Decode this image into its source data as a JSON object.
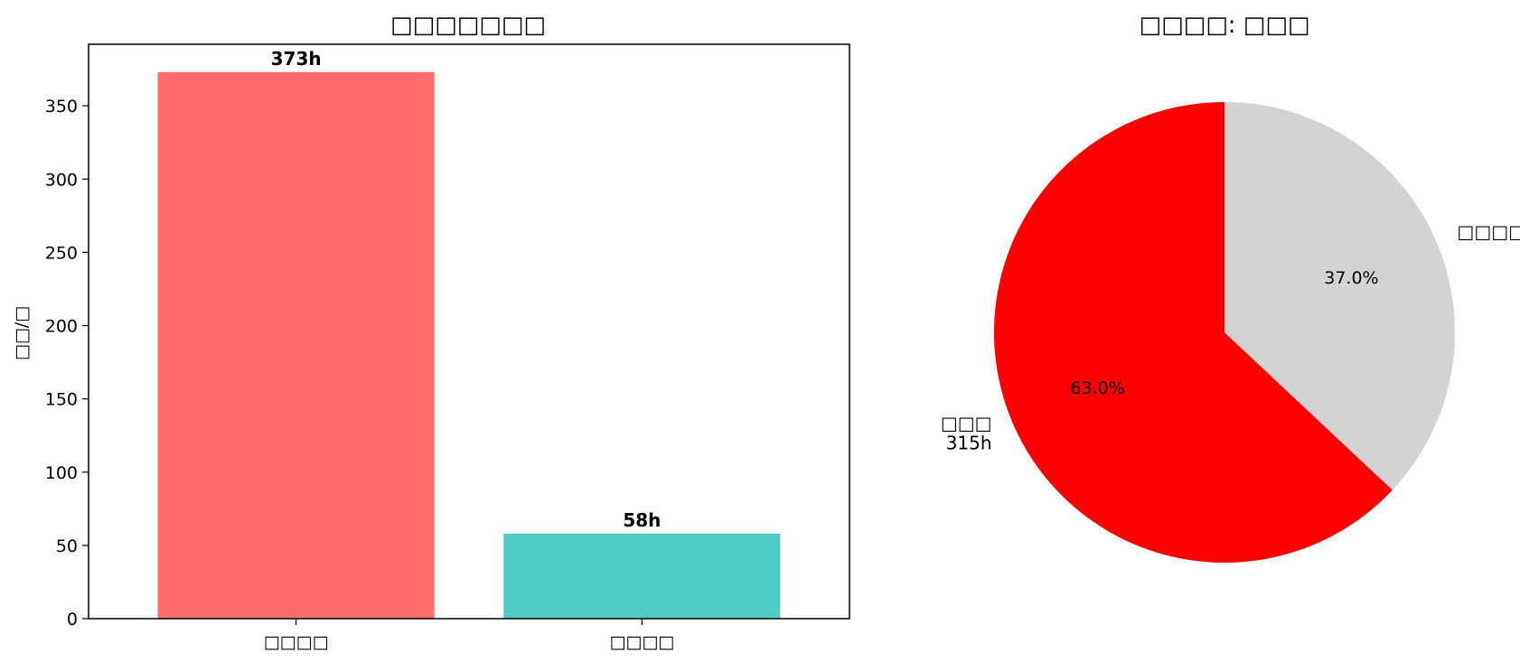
{
  "chart_data": [
    {
      "type": "bar",
      "title": "□□□□□□□",
      "ylabel": "□□/□",
      "xlabel": "",
      "categories": [
        "□□□□",
        "□□□□"
      ],
      "values": [
        373,
        58
      ],
      "data_labels": [
        "373h",
        "58h"
      ],
      "colors": [
        "#ff6b6b",
        "#4ecdc4"
      ],
      "ylim": [
        0,
        392
      ],
      "yticks": [
        0,
        50,
        100,
        150,
        200,
        250,
        300,
        350
      ],
      "ytick_labels": [
        "0",
        "50",
        "100",
        "150",
        "200",
        "250",
        "300",
        "350"
      ],
      "grid": false
    },
    {
      "type": "pie",
      "title": "□□□□: □□□",
      "slices": [
        {
          "label": "□□□\n315h",
          "value": 63.0,
          "pct_label": "63.0%",
          "color": "#ff0000"
        },
        {
          "label": "□□□□",
          "value": 37.0,
          "pct_label": "37.0%",
          "color": "#d3d3d3"
        }
      ],
      "start_angle": 90,
      "direction": "counterclockwise"
    }
  ]
}
